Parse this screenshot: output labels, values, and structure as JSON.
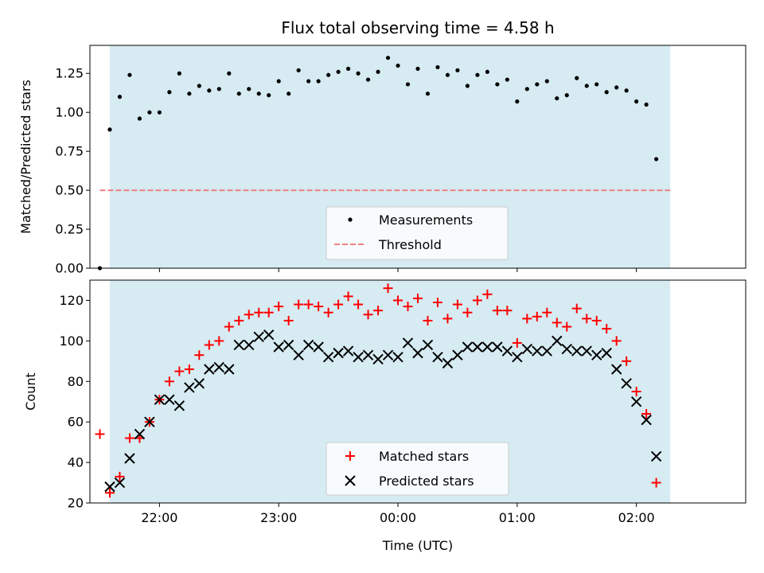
{
  "chart_data": [
    {
      "type": "scatter",
      "title": "Flux total observing time = 4.58 h",
      "xlabel": "",
      "ylabel": "Matched/Predicted stars",
      "xlim": [
        "21:25",
        "02:55"
      ],
      "ylim": [
        0.0,
        1.43
      ],
      "yticks": [
        "0.00",
        "0.25",
        "0.50",
        "0.75",
        "1.00",
        "1.25"
      ],
      "shaded_span": {
        "from": "21:35",
        "to": "02:17",
        "color": "#add8e6"
      },
      "grid": false,
      "legend": {
        "position": "lower-center"
      },
      "series": [
        {
          "name": "Measurements",
          "marker": "dot",
          "color": "#000000",
          "points": [
            [
              "21:30",
              0.0
            ],
            [
              "21:35",
              0.89
            ],
            [
              "21:40",
              1.1
            ],
            [
              "21:45",
              1.24
            ],
            [
              "21:50",
              0.96
            ],
            [
              "21:55",
              1.0
            ],
            [
              "22:00",
              1.0
            ],
            [
              "22:05",
              1.13
            ],
            [
              "22:10",
              1.25
            ],
            [
              "22:15",
              1.12
            ],
            [
              "22:20",
              1.17
            ],
            [
              "22:25",
              1.14
            ],
            [
              "22:30",
              1.15
            ],
            [
              "22:35",
              1.25
            ],
            [
              "22:40",
              1.12
            ],
            [
              "22:45",
              1.15
            ],
            [
              "22:50",
              1.12
            ],
            [
              "22:55",
              1.11
            ],
            [
              "23:00",
              1.2
            ],
            [
              "23:05",
              1.12
            ],
            [
              "23:10",
              1.27
            ],
            [
              "23:15",
              1.2
            ],
            [
              "23:20",
              1.2
            ],
            [
              "23:25",
              1.24
            ],
            [
              "23:30",
              1.26
            ],
            [
              "23:35",
              1.28
            ],
            [
              "23:40",
              1.25
            ],
            [
              "23:45",
              1.21
            ],
            [
              "23:50",
              1.26
            ],
            [
              "23:55",
              1.35
            ],
            [
              "00:00",
              1.3
            ],
            [
              "00:05",
              1.18
            ],
            [
              "00:10",
              1.28
            ],
            [
              "00:15",
              1.12
            ],
            [
              "00:20",
              1.29
            ],
            [
              "00:25",
              1.24
            ],
            [
              "00:30",
              1.27
            ],
            [
              "00:35",
              1.17
            ],
            [
              "00:40",
              1.24
            ],
            [
              "00:45",
              1.26
            ],
            [
              "00:50",
              1.18
            ],
            [
              "00:55",
              1.21
            ],
            [
              "01:00",
              1.07
            ],
            [
              "01:05",
              1.15
            ],
            [
              "01:10",
              1.18
            ],
            [
              "01:15",
              1.2
            ],
            [
              "01:20",
              1.09
            ],
            [
              "01:25",
              1.11
            ],
            [
              "01:30",
              1.22
            ],
            [
              "01:35",
              1.17
            ],
            [
              "01:40",
              1.18
            ],
            [
              "01:45",
              1.13
            ],
            [
              "01:50",
              1.16
            ],
            [
              "01:55",
              1.14
            ],
            [
              "02:00",
              1.07
            ],
            [
              "02:05",
              1.05
            ],
            [
              "02:10",
              0.7
            ]
          ]
        },
        {
          "name": "Threshold",
          "marker": "dashed-line",
          "color": "#f08080",
          "points": [
            [
              "21:30",
              0.5
            ],
            [
              "02:17",
              0.5
            ]
          ]
        }
      ]
    },
    {
      "type": "scatter",
      "title": "",
      "xlabel": "Time (UTC)",
      "ylabel": "Count",
      "xlim": [
        "21:25",
        "02:55"
      ],
      "ylim": [
        20,
        130
      ],
      "yticks": [
        "20",
        "40",
        "60",
        "80",
        "100",
        "120"
      ],
      "xticks": [
        "22:00",
        "23:00",
        "00:00",
        "01:00",
        "02:00"
      ],
      "shaded_span": {
        "from": "21:35",
        "to": "02:17",
        "color": "#add8e6"
      },
      "grid": false,
      "legend": {
        "position": "lower-center"
      },
      "series": [
        {
          "name": "Matched stars",
          "marker": "plus",
          "color": "#ff0000",
          "points": [
            [
              "21:30",
              54
            ],
            [
              "21:35",
              25
            ],
            [
              "21:40",
              33
            ],
            [
              "21:45",
              52
            ],
            [
              "21:50",
              52
            ],
            [
              "21:55",
              60
            ],
            [
              "22:00",
              71
            ],
            [
              "22:05",
              80
            ],
            [
              "22:10",
              85
            ],
            [
              "22:15",
              86
            ],
            [
              "22:20",
              93
            ],
            [
              "22:25",
              98
            ],
            [
              "22:30",
              100
            ],
            [
              "22:35",
              107
            ],
            [
              "22:40",
              110
            ],
            [
              "22:45",
              113
            ],
            [
              "22:50",
              114
            ],
            [
              "22:55",
              114
            ],
            [
              "23:00",
              117
            ],
            [
              "23:05",
              110
            ],
            [
              "23:10",
              118
            ],
            [
              "23:15",
              118
            ],
            [
              "23:20",
              117
            ],
            [
              "23:25",
              114
            ],
            [
              "23:30",
              118
            ],
            [
              "23:35",
              122
            ],
            [
              "23:40",
              118
            ],
            [
              "23:45",
              113
            ],
            [
              "23:50",
              115
            ],
            [
              "23:55",
              126
            ],
            [
              "00:00",
              120
            ],
            [
              "00:05",
              117
            ],
            [
              "00:10",
              121
            ],
            [
              "00:15",
              110
            ],
            [
              "00:20",
              119
            ],
            [
              "00:25",
              111
            ],
            [
              "00:30",
              118
            ],
            [
              "00:35",
              114
            ],
            [
              "00:40",
              120
            ],
            [
              "00:45",
              123
            ],
            [
              "00:50",
              115
            ],
            [
              "00:55",
              115
            ],
            [
              "01:00",
              99
            ],
            [
              "01:05",
              111
            ],
            [
              "01:10",
              112
            ],
            [
              "01:15",
              114
            ],
            [
              "01:20",
              109
            ],
            [
              "01:25",
              107
            ],
            [
              "01:30",
              116
            ],
            [
              "01:35",
              111
            ],
            [
              "01:40",
              110
            ],
            [
              "01:45",
              106
            ],
            [
              "01:50",
              100
            ],
            [
              "01:55",
              90
            ],
            [
              "02:00",
              75
            ],
            [
              "02:05",
              64
            ],
            [
              "02:10",
              30
            ]
          ]
        },
        {
          "name": "Predicted stars",
          "marker": "x",
          "color": "#000000",
          "points": [
            [
              "21:35",
              28
            ],
            [
              "21:40",
              30
            ],
            [
              "21:45",
              42
            ],
            [
              "21:50",
              54
            ],
            [
              "21:55",
              60
            ],
            [
              "22:00",
              71
            ],
            [
              "22:05",
              71
            ],
            [
              "22:10",
              68
            ],
            [
              "22:15",
              77
            ],
            [
              "22:20",
              79
            ],
            [
              "22:25",
              86
            ],
            [
              "22:30",
              87
            ],
            [
              "22:35",
              86
            ],
            [
              "22:40",
              98
            ],
            [
              "22:45",
              98
            ],
            [
              "22:50",
              102
            ],
            [
              "22:55",
              103
            ],
            [
              "23:00",
              97
            ],
            [
              "23:05",
              98
            ],
            [
              "23:10",
              93
            ],
            [
              "23:15",
              98
            ],
            [
              "23:20",
              97
            ],
            [
              "23:25",
              92
            ],
            [
              "23:30",
              94
            ],
            [
              "23:35",
              95
            ],
            [
              "23:40",
              92
            ],
            [
              "23:45",
              93
            ],
            [
              "23:50",
              91
            ],
            [
              "23:55",
              93
            ],
            [
              "00:00",
              92
            ],
            [
              "00:05",
              99
            ],
            [
              "00:10",
              94
            ],
            [
              "00:15",
              98
            ],
            [
              "00:20",
              92
            ],
            [
              "00:25",
              89
            ],
            [
              "00:30",
              93
            ],
            [
              "00:35",
              97
            ],
            [
              "00:40",
              97
            ],
            [
              "00:45",
              97
            ],
            [
              "00:50",
              97
            ],
            [
              "00:55",
              95
            ],
            [
              "01:00",
              92
            ],
            [
              "01:05",
              96
            ],
            [
              "01:10",
              95
            ],
            [
              "01:15",
              95
            ],
            [
              "01:20",
              100
            ],
            [
              "01:25",
              96
            ],
            [
              "01:30",
              95
            ],
            [
              "01:35",
              95
            ],
            [
              "01:40",
              93
            ],
            [
              "01:45",
              94
            ],
            [
              "01:50",
              86
            ],
            [
              "01:55",
              79
            ],
            [
              "02:00",
              70
            ],
            [
              "02:05",
              61
            ],
            [
              "02:10",
              43
            ]
          ]
        }
      ]
    }
  ]
}
